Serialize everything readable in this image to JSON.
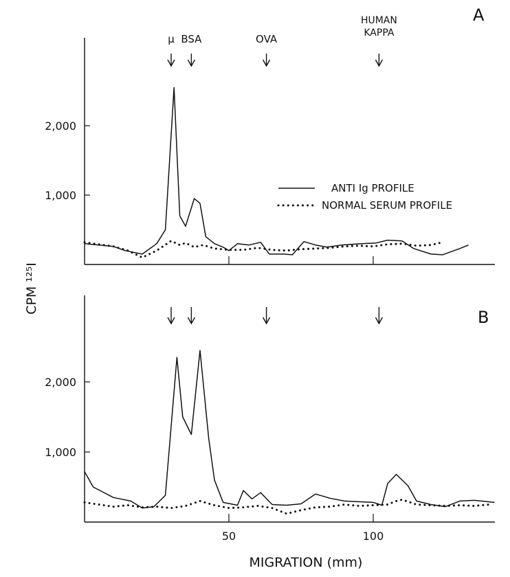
{
  "chart_data": {
    "type": "line",
    "shared_ylabel": "CPM ¹²⁵I",
    "shared_xlabel": "MIGRATION (mm)",
    "x_ticks": [
      "50",
      "100"
    ],
    "y_ticks": [
      "1,000",
      "2,000"
    ],
    "xlim": [
      0,
      142
    ],
    "ylim": [
      0,
      3000
    ],
    "legend": {
      "placement": "center-right of panel A",
      "entries": [
        "ANTI Ig PROFILE",
        "NORMAL SERUM PROFILE"
      ]
    },
    "panels": [
      {
        "panel_label": "A",
        "markers": [
          {
            "label": "μ",
            "x": 30
          },
          {
            "label": "BSA",
            "x": 37
          },
          {
            "label": "OVA",
            "x": 63
          },
          {
            "label": "HUMAN KAPPA",
            "label_line1": "HUMAN",
            "label_line2": "KAPPA",
            "x": 102
          }
        ],
        "series": [
          {
            "name": "ANTI Ig PROFILE",
            "style": "solid",
            "x": [
              0,
              5,
              10,
              14,
              20,
              25,
              28,
              31,
              33,
              35,
              38,
              40,
              42,
              45,
              48,
              50,
              53,
              57,
              61,
              64,
              69,
              72,
              76,
              80,
              84,
              89,
              96,
              101,
              105,
              110,
              114,
              120,
              124,
              130,
              133
            ],
            "y": [
              300,
              280,
              260,
              200,
              150,
              300,
              500,
              2550,
              700,
              550,
              950,
              880,
              400,
              300,
              250,
              200,
              300,
              280,
              320,
              150,
              150,
              140,
              330,
              280,
              250,
              280,
              300,
              310,
              350,
              340,
              230,
              150,
              140,
              230,
              280
            ]
          },
          {
            "name": "NORMAL SERUM PROFILE",
            "style": "dotted",
            "x": [
              0,
              5,
              10,
              15,
              20,
              25,
              30,
              33,
              35,
              38,
              41,
              45,
              50,
              55,
              60,
              65,
              70,
              75,
              80,
              85,
              90,
              95,
              100,
              105,
              110,
              115,
              120,
              124
            ],
            "y": [
              320,
              290,
              260,
              200,
              100,
              200,
              340,
              280,
              310,
              250,
              280,
              230,
              210,
              210,
              240,
              210,
              200,
              220,
              230,
              240,
              260,
              270,
              260,
              290,
              300,
              270,
              280,
              320
            ]
          }
        ]
      },
      {
        "panel_label": "B",
        "markers": [
          {
            "label": "",
            "x": 30
          },
          {
            "label": "",
            "x": 37
          },
          {
            "label": "",
            "x": 63
          },
          {
            "label": "",
            "x": 102
          }
        ],
        "series": [
          {
            "name": "ANTI Ig PROFILE",
            "style": "solid",
            "x": [
              0,
              3,
              10,
              16,
              20,
              24,
              28,
              32,
              34,
              37,
              40,
              43,
              45,
              48,
              53,
              55,
              58,
              61,
              65,
              70,
              75,
              80,
              85,
              90,
              100,
              103,
              105,
              108,
              112,
              115,
              120,
              125,
              130,
              135,
              142
            ],
            "y": [
              720,
              500,
              350,
              300,
              200,
              220,
              380,
              2350,
              1500,
              1250,
              2450,
              1200,
              600,
              280,
              240,
              450,
              330,
              420,
              250,
              240,
              260,
              400,
              340,
              300,
              280,
              240,
              550,
              680,
              520,
              300,
              250,
              220,
              300,
              310,
              280
            ]
          },
          {
            "name": "NORMAL SERUM PROFILE",
            "style": "dotted",
            "x": [
              0,
              5,
              10,
              15,
              20,
              25,
              30,
              35,
              40,
              45,
              50,
              55,
              60,
              65,
              70,
              75,
              80,
              85,
              90,
              95,
              100,
              105,
              108,
              110,
              115,
              120,
              125,
              130,
              135,
              140
            ],
            "y": [
              280,
              250,
              220,
              240,
              210,
              220,
              200,
              230,
              300,
              240,
              200,
              210,
              230,
              200,
              120,
              170,
              210,
              220,
              250,
              230,
              240,
              250,
              300,
              320,
              250,
              240,
              230,
              240,
              230,
              250
            ]
          }
        ]
      }
    ]
  }
}
